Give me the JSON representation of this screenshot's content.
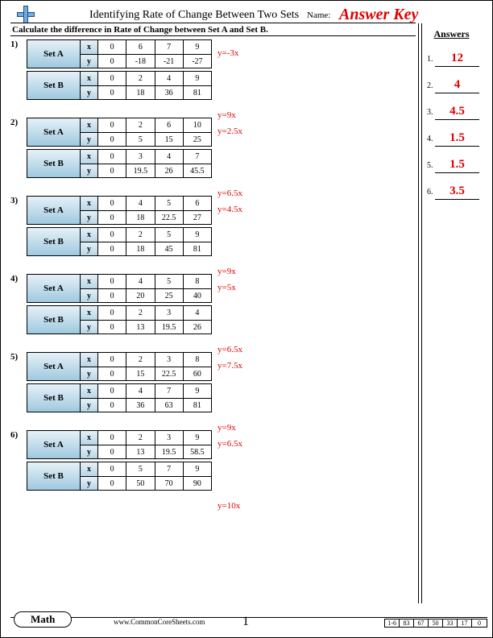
{
  "header": {
    "title": "Identifying Rate of Change Between Two Sets",
    "name_label": "Name:",
    "answer_key": "Answer Key"
  },
  "instruction": "Calculate the difference in Rate of Change between Set A and Set B.",
  "answers_title": "Answers",
  "answers": [
    "12",
    "4",
    "4.5",
    "1.5",
    "1.5",
    "3.5"
  ],
  "problems": [
    {
      "setA": {
        "x": [
          "0",
          "6",
          "7",
          "9"
        ],
        "y": [
          "0",
          "-18",
          "-21",
          "-27"
        ],
        "eqn": "y=-3x"
      },
      "setB": {
        "x": [
          "0",
          "2",
          "4",
          "9"
        ],
        "y": [
          "0",
          "18",
          "36",
          "81"
        ],
        "eqn": "y=9x"
      }
    },
    {
      "setA": {
        "x": [
          "0",
          "2",
          "6",
          "10"
        ],
        "y": [
          "0",
          "5",
          "15",
          "25"
        ],
        "eqn": "y=2.5x"
      },
      "setB": {
        "x": [
          "0",
          "3",
          "4",
          "7"
        ],
        "y": [
          "0",
          "19.5",
          "26",
          "45.5"
        ],
        "eqn": "y=6.5x"
      }
    },
    {
      "setA": {
        "x": [
          "0",
          "4",
          "5",
          "6"
        ],
        "y": [
          "0",
          "18",
          "22.5",
          "27"
        ],
        "eqn": "y=4.5x"
      },
      "setB": {
        "x": [
          "0",
          "2",
          "5",
          "9"
        ],
        "y": [
          "0",
          "18",
          "45",
          "81"
        ],
        "eqn": "y=9x"
      }
    },
    {
      "setA": {
        "x": [
          "0",
          "4",
          "5",
          "8"
        ],
        "y": [
          "0",
          "20",
          "25",
          "40"
        ],
        "eqn": "y=5x"
      },
      "setB": {
        "x": [
          "0",
          "2",
          "3",
          "4"
        ],
        "y": [
          "0",
          "13",
          "19.5",
          "26"
        ],
        "eqn": "y=6.5x"
      }
    },
    {
      "setA": {
        "x": [
          "0",
          "2",
          "3",
          "8"
        ],
        "y": [
          "0",
          "15",
          "22.5",
          "60"
        ],
        "eqn": "y=7.5x"
      },
      "setB": {
        "x": [
          "0",
          "4",
          "7",
          "9"
        ],
        "y": [
          "0",
          "36",
          "63",
          "81"
        ],
        "eqn": "y=9x"
      }
    },
    {
      "setA": {
        "x": [
          "0",
          "2",
          "3",
          "9"
        ],
        "y": [
          "0",
          "13",
          "19.5",
          "58.5"
        ],
        "eqn": "y=6.5x"
      },
      "setB": {
        "x": [
          "0",
          "5",
          "7",
          "9"
        ],
        "y": [
          "0",
          "50",
          "70",
          "90"
        ],
        "eqn": "y=10x"
      }
    }
  ],
  "labels": {
    "setA": "Set A",
    "setB": "Set B",
    "x": "x",
    "y": "y"
  },
  "footer": {
    "subject": "Math",
    "site": "www.CommonCoreSheets.com",
    "page": "1",
    "scale_label": "1-6",
    "scale": [
      "83",
      "67",
      "50",
      "33",
      "17",
      "0"
    ]
  },
  "colors": {
    "answer_red": "#e00000",
    "gradient_top": "#e5f1f8",
    "gradient_bottom": "#9fc9df"
  }
}
